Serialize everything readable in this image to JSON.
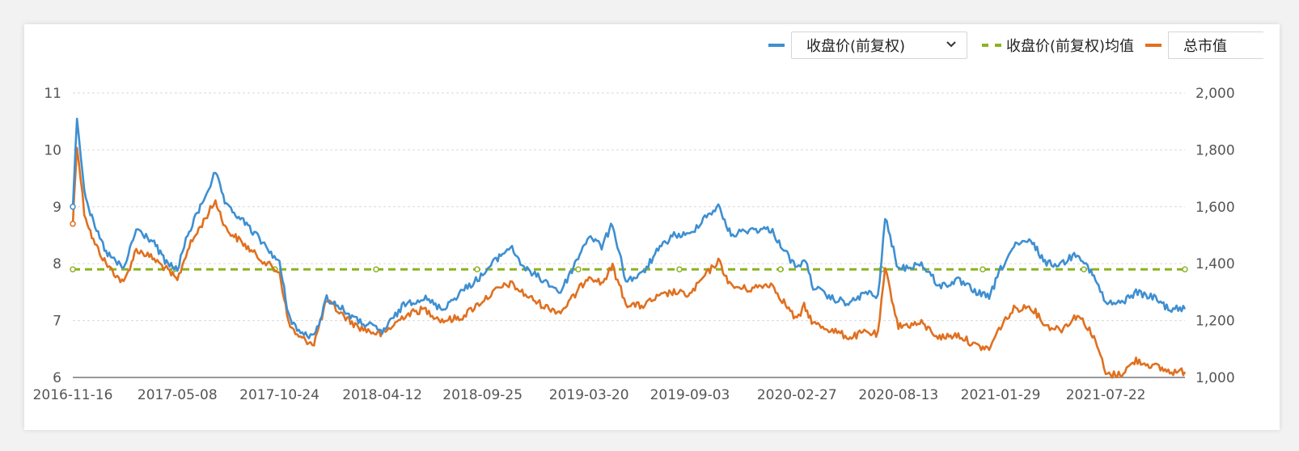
{
  "legend": {
    "select_label": "收盘价(前复权)",
    "avg_label": "收盘价(前复权)均值",
    "mcap_label": "总市值"
  },
  "colors": {
    "price": "#3e8fd1",
    "mcap": "#e07020",
    "avg": "#8cb321",
    "grid": "#d9d9d9",
    "axis_text": "#555555"
  },
  "chart_data": {
    "type": "line",
    "x_dates": [
      "2016-11-16",
      "2017-05-08",
      "2017-10-24",
      "2018-04-12",
      "2018-09-25",
      "2019-03-20",
      "2019-09-03",
      "2020-02-27",
      "2020-08-13",
      "2021-01-29",
      "2021-07-22"
    ],
    "x_range": [
      "2016-11-16",
      "2021-11-30"
    ],
    "y_left_ticks": [
      "6",
      "7",
      "8",
      "9",
      "10",
      "11"
    ],
    "y_left_range": [
      6,
      11
    ],
    "y_right_ticks": [
      "1,000",
      "1,200",
      "1,400",
      "1,600",
      "1,800",
      "2,000"
    ],
    "y_right_range": [
      1000,
      2000
    ],
    "grid": true,
    "legend_position": "top-right",
    "series": [
      {
        "name": "收盘价(前复权)",
        "axis": "left",
        "points": [
          [
            "2016-11-16",
            9.0
          ],
          [
            "2016-11-23",
            10.6
          ],
          [
            "2016-12-05",
            9.3
          ],
          [
            "2016-12-20",
            8.7
          ],
          [
            "2017-01-10",
            8.2
          ],
          [
            "2017-02-08",
            7.9
          ],
          [
            "2017-03-01",
            8.6
          ],
          [
            "2017-03-28",
            8.4
          ],
          [
            "2017-04-20",
            8.0
          ],
          [
            "2017-05-08",
            7.9
          ],
          [
            "2017-05-25",
            8.5
          ],
          [
            "2017-06-15",
            9.0
          ],
          [
            "2017-07-10",
            9.6
          ],
          [
            "2017-07-28",
            9.0
          ],
          [
            "2017-08-20",
            8.8
          ],
          [
            "2017-09-15",
            8.5
          ],
          [
            "2017-10-10",
            8.2
          ],
          [
            "2017-10-24",
            8.0
          ],
          [
            "2017-11-08",
            7.1
          ],
          [
            "2017-11-25",
            6.8
          ],
          [
            "2017-12-20",
            6.7
          ],
          [
            "2018-01-10",
            7.4
          ],
          [
            "2018-02-05",
            7.2
          ],
          [
            "2018-03-01",
            7.0
          ],
          [
            "2018-03-25",
            6.9
          ],
          [
            "2018-04-12",
            6.8
          ],
          [
            "2018-05-20",
            7.3
          ],
          [
            "2018-06-20",
            7.4
          ],
          [
            "2018-07-20",
            7.2
          ],
          [
            "2018-08-20",
            7.5
          ],
          [
            "2018-09-25",
            7.8
          ],
          [
            "2018-10-20",
            8.1
          ],
          [
            "2018-11-10",
            8.3
          ],
          [
            "2018-12-05",
            7.9
          ],
          [
            "2019-01-05",
            7.7
          ],
          [
            "2019-02-01",
            7.5
          ],
          [
            "2019-02-25",
            8.0
          ],
          [
            "2019-03-20",
            8.5
          ],
          [
            "2019-04-10",
            8.3
          ],
          [
            "2019-04-28",
            8.7
          ],
          [
            "2019-05-20",
            7.7
          ],
          [
            "2019-06-15",
            7.8
          ],
          [
            "2019-07-10",
            8.2
          ],
          [
            "2019-08-05",
            8.5
          ],
          [
            "2019-09-03",
            8.5
          ],
          [
            "2019-09-25",
            8.8
          ],
          [
            "2019-10-20",
            9.0
          ],
          [
            "2019-11-10",
            8.5
          ],
          [
            "2019-12-10",
            8.6
          ],
          [
            "2020-01-15",
            8.6
          ],
          [
            "2020-02-27",
            7.9
          ],
          [
            "2020-03-10",
            8.1
          ],
          [
            "2020-03-25",
            7.6
          ],
          [
            "2020-04-20",
            7.4
          ],
          [
            "2020-05-25",
            7.3
          ],
          [
            "2020-06-20",
            7.5
          ],
          [
            "2020-07-10",
            7.4
          ],
          [
            "2020-07-22",
            8.8
          ],
          [
            "2020-08-13",
            7.9
          ],
          [
            "2020-09-20",
            8.0
          ],
          [
            "2020-10-20",
            7.6
          ],
          [
            "2020-11-20",
            7.7
          ],
          [
            "2020-12-20",
            7.5
          ],
          [
            "2021-01-10",
            7.4
          ],
          [
            "2021-01-29",
            7.9
          ],
          [
            "2021-02-20",
            8.3
          ],
          [
            "2021-03-20",
            8.4
          ],
          [
            "2021-04-15",
            8.0
          ],
          [
            "2021-05-10",
            8.0
          ],
          [
            "2021-06-05",
            8.2
          ],
          [
            "2021-06-25",
            7.9
          ],
          [
            "2021-07-10",
            7.6
          ],
          [
            "2021-07-22",
            7.3
          ],
          [
            "2021-08-15",
            7.3
          ],
          [
            "2021-09-10",
            7.5
          ],
          [
            "2021-10-10",
            7.4
          ],
          [
            "2021-11-05",
            7.2
          ],
          [
            "2021-11-30",
            7.2
          ]
        ]
      },
      {
        "name": "收盘价(前复权)均值",
        "axis": "left",
        "style": "dashed",
        "value": 7.9
      },
      {
        "name": "总市值",
        "axis": "right",
        "points": [
          [
            "2016-11-16",
            1540
          ],
          [
            "2016-11-23",
            1820
          ],
          [
            "2016-12-05",
            1580
          ],
          [
            "2016-12-20",
            1480
          ],
          [
            "2017-01-10",
            1400
          ],
          [
            "2017-02-08",
            1330
          ],
          [
            "2017-03-01",
            1450
          ],
          [
            "2017-03-28",
            1420
          ],
          [
            "2017-04-20",
            1380
          ],
          [
            "2017-05-08",
            1340
          ],
          [
            "2017-05-25",
            1450
          ],
          [
            "2017-06-15",
            1530
          ],
          [
            "2017-07-10",
            1620
          ],
          [
            "2017-07-28",
            1520
          ],
          [
            "2017-08-20",
            1480
          ],
          [
            "2017-09-15",
            1430
          ],
          [
            "2017-10-10",
            1390
          ],
          [
            "2017-10-24",
            1370
          ],
          [
            "2017-11-08",
            1190
          ],
          [
            "2017-11-25",
            1140
          ],
          [
            "2017-12-20",
            1120
          ],
          [
            "2018-01-10",
            1270
          ],
          [
            "2018-02-05",
            1220
          ],
          [
            "2018-03-01",
            1180
          ],
          [
            "2018-03-25",
            1160
          ],
          [
            "2018-04-12",
            1150
          ],
          [
            "2018-05-20",
            1220
          ],
          [
            "2018-06-20",
            1240
          ],
          [
            "2018-07-20",
            1200
          ],
          [
            "2018-08-20",
            1210
          ],
          [
            "2018-09-25",
            1270
          ],
          [
            "2018-10-20",
            1310
          ],
          [
            "2018-11-10",
            1330
          ],
          [
            "2018-12-05",
            1290
          ],
          [
            "2019-01-05",
            1250
          ],
          [
            "2019-02-01",
            1230
          ],
          [
            "2019-02-25",
            1290
          ],
          [
            "2019-03-20",
            1360
          ],
          [
            "2019-04-10",
            1330
          ],
          [
            "2019-04-28",
            1390
          ],
          [
            "2019-05-20",
            1260
          ],
          [
            "2019-06-15",
            1250
          ],
          [
            "2019-07-10",
            1280
          ],
          [
            "2019-08-05",
            1300
          ],
          [
            "2019-09-03",
            1290
          ],
          [
            "2019-09-25",
            1350
          ],
          [
            "2019-10-20",
            1410
          ],
          [
            "2019-11-10",
            1320
          ],
          [
            "2019-12-10",
            1310
          ],
          [
            "2020-01-15",
            1330
          ],
          [
            "2020-02-27",
            1200
          ],
          [
            "2020-03-10",
            1250
          ],
          [
            "2020-03-25",
            1190
          ],
          [
            "2020-04-20",
            1170
          ],
          [
            "2020-05-25",
            1140
          ],
          [
            "2020-06-20",
            1160
          ],
          [
            "2020-07-10",
            1150
          ],
          [
            "2020-07-22",
            1380
          ],
          [
            "2020-08-13",
            1180
          ],
          [
            "2020-09-20",
            1190
          ],
          [
            "2020-10-20",
            1140
          ],
          [
            "2020-11-20",
            1150
          ],
          [
            "2020-12-20",
            1110
          ],
          [
            "2021-01-10",
            1100
          ],
          [
            "2021-01-29",
            1180
          ],
          [
            "2021-02-20",
            1240
          ],
          [
            "2021-03-20",
            1250
          ],
          [
            "2021-04-15",
            1180
          ],
          [
            "2021-05-10",
            1170
          ],
          [
            "2021-06-05",
            1220
          ],
          [
            "2021-06-25",
            1170
          ],
          [
            "2021-07-10",
            1100
          ],
          [
            "2021-07-22",
            1010
          ],
          [
            "2021-08-15",
            1010
          ],
          [
            "2021-09-10",
            1060
          ],
          [
            "2021-10-10",
            1040
          ],
          [
            "2021-11-05",
            1020
          ],
          [
            "2021-11-30",
            1020
          ]
        ]
      }
    ]
  }
}
